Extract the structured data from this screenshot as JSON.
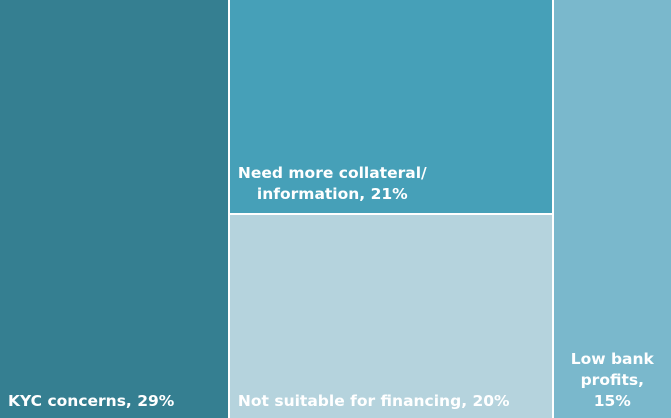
{
  "chart_data": {
    "type": "treemap",
    "title": "",
    "items": [
      {
        "label": "KYC concerns, 29%",
        "name": "KYC concerns",
        "value": 29,
        "color": "#357f91"
      },
      {
        "label": "Need more collateral/\ninformation, 21%",
        "name": "Need more collateral/ information",
        "value": 21,
        "color": "#46a0b8"
      },
      {
        "label": "Not suitable for financing, 20%",
        "name": "Not suitable for financing",
        "value": 20,
        "color": "#b5d3dd"
      },
      {
        "label": "Low bank\nprofits,\n15%",
        "name": "Low bank profits",
        "value": 15,
        "color": "#7ab8cc"
      }
    ],
    "legend": "none"
  }
}
